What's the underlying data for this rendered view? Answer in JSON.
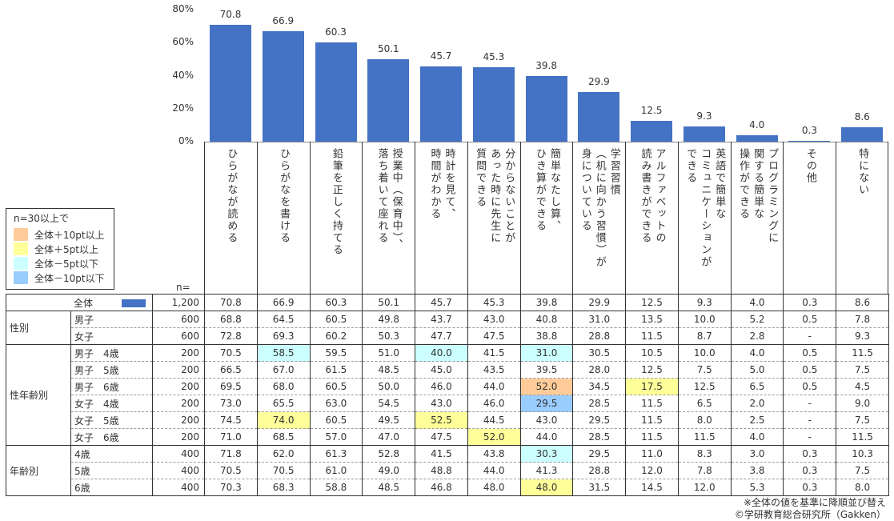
{
  "chart_data": {
    "type": "bar",
    "ylim": [
      0,
      80
    ],
    "yticks": [
      "0%",
      "20%",
      "40%",
      "60%",
      "80%"
    ],
    "categories": [
      "ひらがなが読める",
      "ひらがなを書ける",
      "鉛筆を正しく持てる",
      "授業中（保育中）、\n落ち着いて座れる",
      "時計を見て、\n時間がわかる",
      "分からないことが\nあった時に先生に\n質問できる",
      "簡単なたし算、\nひき算ができる",
      "学習習慣\n（机に向かう習慣）が\n身についている",
      "アルファベットの\n読み書きができる",
      "英語で簡単な\nコミュニケーションが\nできる",
      "プログラミングに\n関する簡単な\n操作ができる",
      "その他",
      "特にない"
    ],
    "values": [
      70.8,
      66.9,
      60.3,
      50.1,
      45.7,
      45.3,
      39.8,
      29.9,
      12.5,
      9.3,
      4.0,
      0.3,
      8.6
    ],
    "value_labels": [
      "70.8",
      "66.9",
      "60.3",
      "50.1",
      "45.7",
      "45.3",
      "39.8",
      "29.9",
      "12.5",
      "9.3",
      "4.0",
      "0.3",
      "8.6"
    ],
    "bar_color": "#4472C4"
  },
  "legend": {
    "title": "n=30以上で",
    "items": [
      {
        "label": "全体＋10pt以上",
        "color": "#FFCC99",
        "key": "p10"
      },
      {
        "label": "全体＋5pt以上",
        "color": "#FFFF99",
        "key": "p5"
      },
      {
        "label": "全体－5pt以下",
        "color": "#CCFFFF",
        "key": "m5"
      },
      {
        "label": "全体－10pt以下",
        "color": "#99CCFF",
        "key": "m10"
      }
    ]
  },
  "n_title": "n=",
  "table": {
    "groups": [
      {
        "label": "",
        "rows": [
          {
            "label": "全体",
            "n": "1,200",
            "values": [
              "70.8",
              "66.9",
              "60.3",
              "50.1",
              "45.7",
              "45.3",
              "39.8",
              "29.9",
              "12.5",
              "9.3",
              "4.0",
              "0.3",
              "8.6"
            ],
            "hl": {}
          }
        ]
      },
      {
        "label": "性別",
        "rows": [
          {
            "label": "男子",
            "n": "600",
            "values": [
              "68.8",
              "64.5",
              "60.5",
              "49.8",
              "43.7",
              "43.0",
              "40.8",
              "31.0",
              "13.5",
              "10.0",
              "5.2",
              "0.5",
              "7.8"
            ],
            "hl": {}
          },
          {
            "label": "女子",
            "n": "600",
            "values": [
              "72.8",
              "69.3",
              "60.2",
              "50.3",
              "47.7",
              "47.5",
              "38.8",
              "28.8",
              "11.5",
              "8.7",
              "2.8",
              "-",
              "9.3"
            ],
            "hl": {}
          }
        ]
      },
      {
        "label": "性年齢別",
        "rows": [
          {
            "label": "男子　4歳",
            "n": "200",
            "values": [
              "70.5",
              "58.5",
              "59.5",
              "51.0",
              "40.0",
              "41.5",
              "31.0",
              "30.5",
              "10.5",
              "10.0",
              "4.0",
              "0.5",
              "11.5"
            ],
            "hl": {
              "1": "m5",
              "4": "m5",
              "6": "m5"
            }
          },
          {
            "label": "男子　5歳",
            "n": "200",
            "values": [
              "66.5",
              "67.0",
              "61.5",
              "48.5",
              "45.0",
              "43.5",
              "39.5",
              "28.0",
              "12.5",
              "7.5",
              "5.0",
              "0.5",
              "7.5"
            ],
            "hl": {}
          },
          {
            "label": "男子　6歳",
            "n": "200",
            "values": [
              "69.5",
              "68.0",
              "60.5",
              "50.0",
              "46.0",
              "44.0",
              "52.0",
              "34.5",
              "17.5",
              "12.5",
              "6.5",
              "0.5",
              "4.5"
            ],
            "hl": {
              "6": "p10",
              "8": "p5"
            }
          },
          {
            "label": "女子　4歳",
            "n": "200",
            "values": [
              "73.0",
              "65.5",
              "63.0",
              "54.5",
              "43.0",
              "46.0",
              "29.5",
              "28.5",
              "11.5",
              "6.5",
              "2.0",
              "-",
              "9.0"
            ],
            "hl": {
              "6": "m10"
            }
          },
          {
            "label": "女子　5歳",
            "n": "200",
            "values": [
              "74.5",
              "74.0",
              "60.5",
              "49.5",
              "52.5",
              "44.5",
              "43.0",
              "29.5",
              "11.5",
              "8.0",
              "2.5",
              "-",
              "7.5"
            ],
            "hl": {
              "1": "p5",
              "4": "p5"
            }
          },
          {
            "label": "女子　6歳",
            "n": "200",
            "values": [
              "71.0",
              "68.5",
              "57.0",
              "47.0",
              "47.5",
              "52.0",
              "44.0",
              "28.5",
              "11.5",
              "11.5",
              "4.0",
              "-",
              "11.5"
            ],
            "hl": {
              "5": "p5"
            }
          }
        ]
      },
      {
        "label": "年齢別",
        "rows": [
          {
            "label": "4歳",
            "n": "400",
            "values": [
              "71.8",
              "62.0",
              "61.3",
              "52.8",
              "41.5",
              "43.8",
              "30.3",
              "29.5",
              "11.0",
              "8.3",
              "3.0",
              "0.3",
              "10.3"
            ],
            "hl": {
              "6": "m5"
            }
          },
          {
            "label": "5歳",
            "n": "400",
            "values": [
              "70.5",
              "70.5",
              "61.0",
              "49.0",
              "48.8",
              "44.0",
              "41.3",
              "28.8",
              "12.0",
              "7.8",
              "3.8",
              "0.3",
              "7.5"
            ],
            "hl": {}
          },
          {
            "label": "6歳",
            "n": "400",
            "values": [
              "70.3",
              "68.3",
              "58.8",
              "48.5",
              "46.8",
              "48.0",
              "48.0",
              "31.5",
              "14.5",
              "12.0",
              "5.3",
              "0.3",
              "8.0"
            ],
            "hl": {
              "6": "p5"
            }
          }
        ]
      }
    ]
  },
  "notes": {
    "sort_note": "※全体の値を基準に降順並び替え",
    "copyright": "©学研教育総合研究所（Gakken）"
  }
}
